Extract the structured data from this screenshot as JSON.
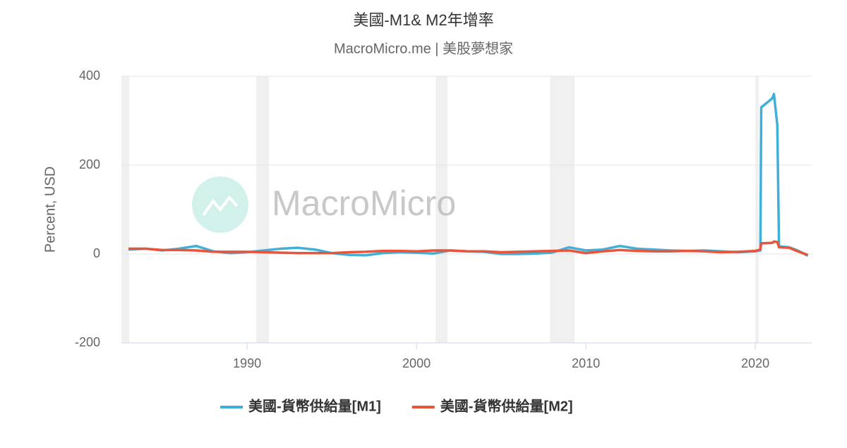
{
  "chart_data": {
    "type": "line",
    "title": "美國-M1& M2年增率",
    "subtitle": "MacroMicro.me | 美股夢想家",
    "watermark": "MacroMicro",
    "y_label": "Percent, USD",
    "x": [
      1983,
      1984,
      1985,
      1986,
      1987,
      1988,
      1989,
      1990,
      1991,
      1992,
      1993,
      1994,
      1995,
      1996,
      1997,
      1998,
      1999,
      2000,
      2001,
      2002,
      2003,
      2004,
      2005,
      2006,
      2007,
      2008,
      2009,
      2010,
      2011,
      2012,
      2013,
      2014,
      2015,
      2016,
      2017,
      2018,
      2019,
      2020,
      2020.3,
      2020.35,
      2021,
      2021.1,
      2021.3,
      2021.4,
      2022,
      2022.5,
      2023.1
    ],
    "series": [
      {
        "name": "美國-貨幣供給量[M1]",
        "color": "#41afd8",
        "values": [
          10,
          12,
          8,
          12,
          18,
          6,
          2,
          4,
          8,
          12,
          14,
          10,
          2,
          -2,
          -3,
          2,
          4,
          3,
          1,
          8,
          6,
          5,
          0,
          0,
          1,
          3,
          15,
          8,
          10,
          18,
          12,
          10,
          8,
          7,
          8,
          6,
          4,
          6,
          8,
          330,
          350,
          360,
          290,
          17,
          15,
          8,
          -4
        ]
      },
      {
        "name": "美國-貨幣供給量[M2]",
        "color": "#e8553a",
        "values": [
          12,
          12,
          9,
          9,
          8,
          5,
          5,
          5,
          4,
          3,
          2,
          2,
          2,
          4,
          5,
          7,
          7,
          6,
          8,
          8,
          6,
          6,
          4,
          5,
          6,
          7,
          8,
          2,
          6,
          9,
          7,
          6,
          6,
          7,
          6,
          4,
          5,
          7,
          10,
          24,
          25,
          28,
          27,
          15,
          14,
          6,
          -2
        ]
      }
    ],
    "shaded_ranges": [
      [
        1982.58,
        1983.04
      ],
      [
        1990.54,
        1991.29
      ],
      [
        2001.13,
        2001.83
      ],
      [
        2007.88,
        2009.33
      ],
      [
        2020.0,
        2020.2
      ]
    ],
    "xlim": [
      1982.58,
      2023.33
    ],
    "xticks": [
      1990,
      2000,
      2010,
      2020
    ],
    "ylim": [
      -200,
      400
    ],
    "yticks": [
      -200,
      0,
      200,
      400
    ],
    "grid": true,
    "legend": "bottom"
  }
}
